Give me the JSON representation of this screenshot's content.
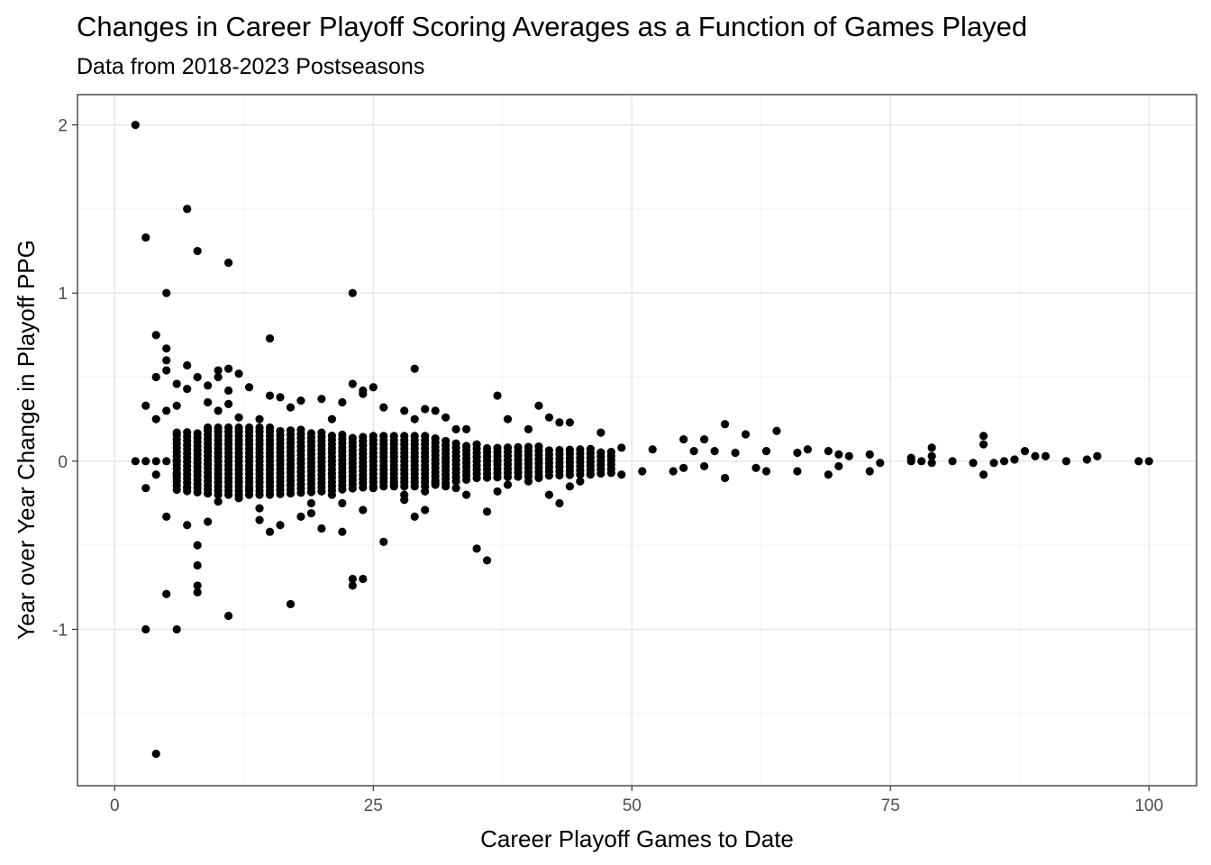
{
  "chart_data": {
    "type": "scatter",
    "title": "Changes in Career Playoff Scoring Averages as a Function of Games Played",
    "subtitle": "Data from 2018-2023 Postseasons",
    "xlabel": "Career Playoff Games to Date",
    "ylabel": "Year over Year Change in Playoff PPG",
    "xlim": [
      -3.6,
      104.6
    ],
    "ylim": [
      -1.93,
      2.18
    ],
    "x_ticks": [
      0,
      25,
      50,
      75,
      100
    ],
    "x_tick_labels": [
      "0",
      "25",
      "50",
      "75",
      "100"
    ],
    "y_ticks": [
      -1,
      0,
      1,
      2
    ],
    "y_tick_labels": [
      "-1",
      "0",
      "1",
      "2"
    ],
    "x_minor_grid": [
      12.5,
      37.5,
      62.5,
      87.5
    ],
    "y_minor_grid": [
      -1.5,
      -0.5,
      0.5,
      1.5
    ],
    "grid": true,
    "theme": "bw",
    "point_color": "#000000",
    "points": [
      [
        2,
        2.0
      ],
      [
        7,
        1.5
      ],
      [
        3,
        1.33
      ],
      [
        8,
        1.25
      ],
      [
        11,
        1.18
      ],
      [
        5,
        1.0
      ],
      [
        23,
        1.0
      ],
      [
        4,
        0.75
      ],
      [
        15,
        0.73
      ],
      [
        5,
        0.67
      ],
      [
        5,
        0.6
      ],
      [
        7,
        0.57
      ],
      [
        29,
        0.55
      ],
      [
        11,
        0.55
      ],
      [
        10,
        0.54
      ],
      [
        5,
        0.54
      ],
      [
        12,
        0.52
      ],
      [
        4,
        0.5
      ],
      [
        10,
        0.5
      ],
      [
        8,
        0.5
      ],
      [
        6,
        0.46
      ],
      [
        23,
        0.46
      ],
      [
        24,
        0.42
      ],
      [
        13,
        0.44
      ],
      [
        25,
        0.44
      ],
      [
        7,
        0.43
      ],
      [
        9,
        0.45
      ],
      [
        11,
        0.42
      ],
      [
        24,
        0.4
      ],
      [
        37,
        0.39
      ],
      [
        15,
        0.39
      ],
      [
        16,
        0.38
      ],
      [
        18,
        0.36
      ],
      [
        20,
        0.37
      ],
      [
        22,
        0.35
      ],
      [
        9,
        0.35
      ],
      [
        30,
        0.31
      ],
      [
        41,
        0.33
      ],
      [
        3,
        0.33
      ],
      [
        6,
        0.33
      ],
      [
        11,
        0.34
      ],
      [
        17,
        0.32
      ],
      [
        26,
        0.32
      ],
      [
        28,
        0.3
      ],
      [
        31,
        0.3
      ],
      [
        10,
        0.3
      ],
      [
        4,
        0.25
      ],
      [
        5,
        0.3
      ],
      [
        14,
        0.25
      ],
      [
        38,
        0.25
      ],
      [
        42,
        0.26
      ],
      [
        43,
        0.23
      ],
      [
        44,
        0.23
      ],
      [
        59,
        0.22
      ],
      [
        29,
        0.25
      ],
      [
        32,
        0.26
      ],
      [
        12,
        0.26
      ],
      [
        21,
        0.25
      ],
      [
        33,
        0.19
      ],
      [
        34,
        0.19
      ],
      [
        40,
        0.19
      ],
      [
        47,
        0.17
      ],
      [
        61,
        0.16
      ],
      [
        64,
        0.18
      ],
      [
        6,
        0.17
      ],
      [
        9,
        0.2
      ],
      [
        84,
        0.15
      ],
      [
        55,
        0.13
      ],
      [
        57,
        0.13
      ],
      [
        84,
        0.1
      ],
      [
        79,
        0.08
      ],
      [
        88,
        0.06
      ],
      [
        67,
        0.07
      ],
      [
        69,
        0.06
      ],
      [
        73,
        0.04
      ],
      [
        66,
        0.05
      ],
      [
        49,
        0.08
      ],
      [
        52,
        0.07
      ],
      [
        56,
        0.06
      ],
      [
        58,
        0.06
      ],
      [
        60,
        0.05
      ],
      [
        63,
        0.06
      ],
      [
        70,
        0.04
      ],
      [
        71,
        0.03
      ],
      [
        77,
        0.02
      ],
      [
        78,
        0.0
      ],
      [
        79,
        0.03
      ],
      [
        81,
        0.0
      ],
      [
        85,
        -0.01
      ],
      [
        86,
        0.0
      ],
      [
        87,
        0.01
      ],
      [
        89,
        0.03
      ],
      [
        90,
        0.03
      ],
      [
        92,
        0.0
      ],
      [
        94,
        0.01
      ],
      [
        95,
        0.03
      ],
      [
        99,
        0.0
      ],
      [
        100,
        0.0
      ],
      [
        74,
        -0.01
      ],
      [
        70,
        -0.03
      ],
      [
        73,
        -0.06
      ],
      [
        77,
        0.0
      ],
      [
        79,
        -0.01
      ],
      [
        83,
        -0.01
      ],
      [
        84,
        -0.08
      ],
      [
        69,
        -0.08
      ],
      [
        66,
        -0.06
      ],
      [
        63,
        -0.06
      ],
      [
        62,
        -0.04
      ],
      [
        59,
        -0.1
      ],
      [
        57,
        -0.03
      ],
      [
        55,
        -0.04
      ],
      [
        54,
        -0.06
      ],
      [
        51,
        -0.06
      ],
      [
        49,
        -0.08
      ],
      [
        46,
        -0.08
      ],
      [
        45,
        -0.12
      ],
      [
        44,
        -0.15
      ],
      [
        43,
        -0.25
      ],
      [
        42,
        -0.2
      ],
      [
        41,
        -0.1
      ],
      [
        40,
        -0.12
      ],
      [
        38,
        -0.14
      ],
      [
        37,
        -0.18
      ],
      [
        36,
        -0.3
      ],
      [
        36,
        -0.59
      ],
      [
        35,
        -0.52
      ],
      [
        34,
        -0.2
      ],
      [
        33,
        -0.16
      ],
      [
        32,
        -0.15
      ],
      [
        31,
        -0.13
      ],
      [
        30,
        -0.18
      ],
      [
        29,
        -0.33
      ],
      [
        30,
        -0.29
      ],
      [
        28,
        -0.23
      ],
      [
        27,
        -0.14
      ],
      [
        26,
        -0.48
      ],
      [
        25,
        -0.16
      ],
      [
        24,
        -0.29
      ],
      [
        24,
        -0.7
      ],
      [
        23,
        -0.7
      ],
      [
        23,
        -0.74
      ],
      [
        22,
        -0.42
      ],
      [
        22,
        -0.25
      ],
      [
        21,
        -0.2
      ],
      [
        20,
        -0.4
      ],
      [
        19,
        -0.31
      ],
      [
        18,
        -0.33
      ],
      [
        17,
        -0.85
      ],
      [
        16,
        -0.38
      ],
      [
        15,
        -0.42
      ],
      [
        14,
        -0.35
      ],
      [
        14,
        -0.28
      ],
      [
        12,
        -0.22
      ],
      [
        11,
        -0.92
      ],
      [
        10,
        -0.24
      ],
      [
        9,
        -0.36
      ],
      [
        8,
        -0.5
      ],
      [
        8,
        -0.62
      ],
      [
        8,
        -0.74
      ],
      [
        8,
        -0.78
      ],
      [
        7,
        -0.38
      ],
      [
        6,
        -1.0
      ],
      [
        5,
        -0.33
      ],
      [
        5,
        -0.79
      ],
      [
        4,
        -1.74
      ],
      [
        3,
        -1.0
      ],
      [
        3,
        -0.16
      ],
      [
        2,
        0.0
      ],
      [
        3,
        0.0
      ],
      [
        4,
        0.0
      ],
      [
        5,
        0.0
      ],
      [
        6,
        0.0
      ],
      [
        4,
        -0.08
      ],
      [
        6,
        -0.08
      ],
      [
        7,
        -0.16
      ],
      [
        19,
        -0.25
      ],
      [
        13,
        -0.16
      ],
      [
        28,
        -0.2
      ],
      [
        37,
        0.0
      ]
    ],
    "dense_band": {
      "x_from": 6,
      "x_to": 48,
      "spread_by_x": [
        [
          6,
          0.17
        ],
        [
          10,
          0.2
        ],
        [
          15,
          0.2
        ],
        [
          20,
          0.18
        ],
        [
          25,
          0.15
        ],
        [
          30,
          0.15
        ],
        [
          35,
          0.1
        ],
        [
          40,
          0.09
        ],
        [
          45,
          0.08
        ],
        [
          48,
          0.07
        ]
      ]
    }
  }
}
